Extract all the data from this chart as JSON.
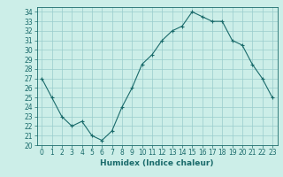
{
  "x": [
    0,
    1,
    2,
    3,
    4,
    5,
    6,
    7,
    8,
    9,
    10,
    11,
    12,
    13,
    14,
    15,
    16,
    17,
    18,
    19,
    20,
    21,
    22,
    23
  ],
  "y": [
    27,
    25,
    23,
    22,
    22.5,
    21,
    20.5,
    21.5,
    24,
    26,
    28.5,
    29.5,
    31,
    32,
    32.5,
    34,
    33.5,
    33,
    33,
    31,
    30.5,
    28.5,
    27,
    25
  ],
  "line_color": "#1a6b6b",
  "marker": "+",
  "bg_color": "#cceee8",
  "grid_color": "#99cccc",
  "xlabel": "Humidex (Indice chaleur)",
  "ylim": [
    20,
    34.5
  ],
  "xlim": [
    -0.5,
    23.5
  ],
  "yticks": [
    20,
    21,
    22,
    23,
    24,
    25,
    26,
    27,
    28,
    29,
    30,
    31,
    32,
    33,
    34
  ],
  "xticks": [
    0,
    1,
    2,
    3,
    4,
    5,
    6,
    7,
    8,
    9,
    10,
    11,
    12,
    13,
    14,
    15,
    16,
    17,
    18,
    19,
    20,
    21,
    22,
    23
  ],
  "tick_color": "#1a6b6b",
  "axis_color": "#1a6b6b",
  "font_color": "#1a6b6b",
  "label_fontsize": 6.5,
  "tick_fontsize": 5.5
}
